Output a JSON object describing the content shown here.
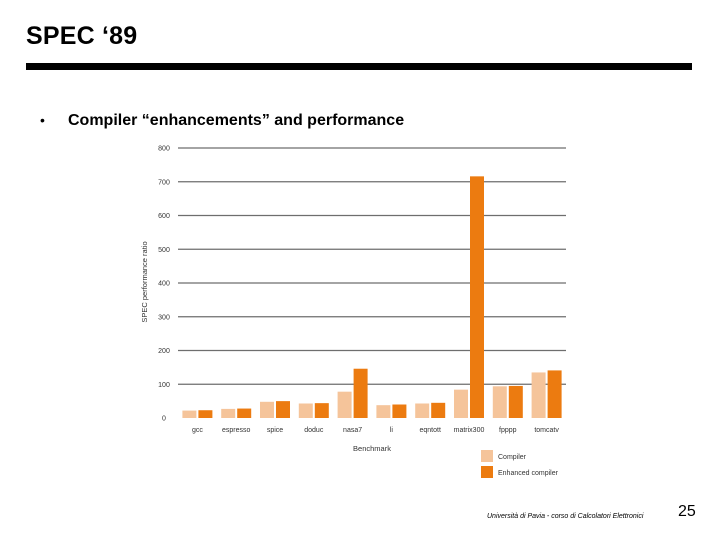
{
  "slide": {
    "title": "SPEC ‘89",
    "bullet_marker": "•",
    "bullet": "Compiler “enhancements” and performance"
  },
  "footer": {
    "text": "Università di Pavia - corso di Calcolatori Elettronici",
    "page_number": "25"
  },
  "colors": {
    "compiler": "#f5c49a",
    "enhanced": "#ec7b10",
    "grid": "#6e6e6e",
    "text": "#333333"
  },
  "chart_data": {
    "type": "bar",
    "title": "",
    "xlabel": "Benchmark",
    "ylabel": "SPEC performance ratio",
    "ylim": [
      0,
      800
    ],
    "yticks": [
      0,
      100,
      200,
      300,
      400,
      500,
      600,
      700,
      800
    ],
    "grid": true,
    "legend_position": "bottom-right",
    "categories": [
      "gcc",
      "espresso",
      "spice",
      "doduc",
      "nasa7",
      "li",
      "eqntott",
      "matrix300",
      "fpppp",
      "tomcatv"
    ],
    "series": [
      {
        "name": "Compiler",
        "values": [
          22,
          27,
          48,
          43,
          78,
          38,
          43,
          84,
          94,
          135
        ]
      },
      {
        "name": "Enhanced compiler",
        "values": [
          23,
          28,
          50,
          44,
          146,
          40,
          45,
          716,
          95,
          141
        ]
      }
    ]
  }
}
